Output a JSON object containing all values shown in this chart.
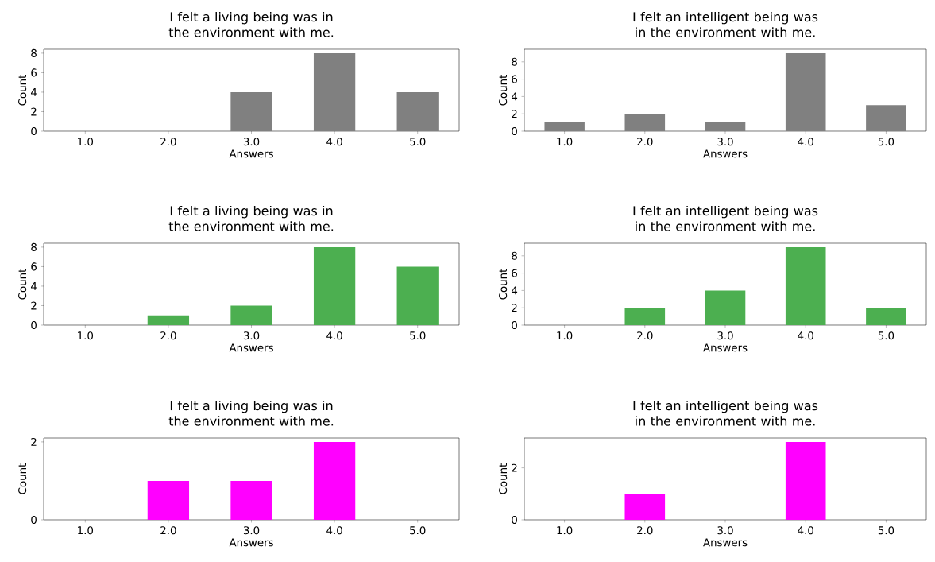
{
  "chart_data": [
    {
      "type": "bar",
      "title": "I felt a living being was in the environment with me.",
      "xlabel": "Answers",
      "ylabel": "Count",
      "categories": [
        "1.0",
        "2.0",
        "3.0",
        "4.0",
        "5.0"
      ],
      "values": [
        0,
        0,
        4,
        8,
        4
      ],
      "color": "#808080",
      "ylim": [
        0,
        8.4
      ],
      "yticks": [
        0,
        2,
        4,
        6,
        8
      ]
    },
    {
      "type": "bar",
      "title": "I felt an intelligent being was in the environment with me.",
      "xlabel": "Answers",
      "ylabel": "Count",
      "categories": [
        "1.0",
        "2.0",
        "3.0",
        "4.0",
        "5.0"
      ],
      "values": [
        1,
        2,
        1,
        9,
        3
      ],
      "color": "#808080",
      "ylim": [
        0,
        9.45
      ],
      "yticks": [
        0,
        2,
        4,
        6,
        8
      ]
    },
    {
      "type": "bar",
      "title": "I felt a living being was in the environment with me.",
      "xlabel": "Answers",
      "ylabel": "Count",
      "categories": [
        "1.0",
        "2.0",
        "3.0",
        "4.0",
        "5.0"
      ],
      "values": [
        0,
        1,
        2,
        8,
        6
      ],
      "color": "#4caf50",
      "ylim": [
        0,
        8.4
      ],
      "yticks": [
        0,
        2,
        4,
        6,
        8
      ]
    },
    {
      "type": "bar",
      "title": "I felt an intelligent being was in the environment with me.",
      "xlabel": "Answers",
      "ylabel": "Count",
      "categories": [
        "1.0",
        "2.0",
        "3.0",
        "4.0",
        "5.0"
      ],
      "values": [
        0,
        2,
        4,
        9,
        2
      ],
      "color": "#4caf50",
      "ylim": [
        0,
        9.45
      ],
      "yticks": [
        0,
        2,
        4,
        6,
        8
      ]
    },
    {
      "type": "bar",
      "title": "I felt a living being was in the environment with me.",
      "xlabel": "Answers",
      "ylabel": "Count",
      "categories": [
        "1.0",
        "2.0",
        "3.0",
        "4.0",
        "5.0"
      ],
      "values": [
        0,
        1,
        1,
        2,
        0
      ],
      "color": "#ff00ff",
      "ylim": [
        0,
        2.1
      ],
      "yticks": [
        0,
        2
      ]
    },
    {
      "type": "bar",
      "title": "I felt an intelligent being was in the environment with me.",
      "xlabel": "Answers",
      "ylabel": "Count",
      "categories": [
        "1.0",
        "2.0",
        "3.0",
        "4.0",
        "5.0"
      ],
      "values": [
        0,
        1,
        0,
        3,
        0
      ],
      "color": "#ff00ff",
      "ylim": [
        0,
        3.15
      ],
      "yticks": [
        0,
        2
      ]
    }
  ]
}
